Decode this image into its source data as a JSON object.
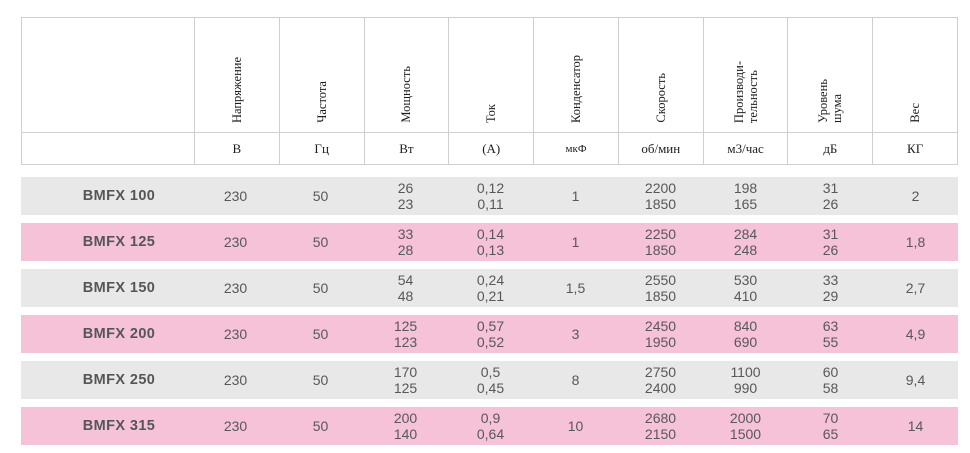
{
  "table": {
    "columns": [
      {
        "label": "Напряжение",
        "unit": "В"
      },
      {
        "label": "Частота",
        "unit": "Гц"
      },
      {
        "label": "Мощность",
        "unit": "Вт"
      },
      {
        "label": "Ток",
        "unit": "(А)"
      },
      {
        "label": "Конденсатор",
        "unit": "мкФ"
      },
      {
        "label": "Скорость",
        "unit": "об/мин"
      },
      {
        "label": "Производи-\nтельность",
        "unit": "м3/час"
      },
      {
        "label": "Уровень\nшума",
        "unit": "дБ"
      },
      {
        "label": "Вес",
        "unit": "КГ"
      }
    ],
    "rows": [
      {
        "model": "BMFX 100",
        "values": [
          "230",
          "50",
          "26\n23",
          "0,12\n0,11",
          "1",
          "2200\n1850",
          "198\n165",
          "31\n26",
          "2"
        ]
      },
      {
        "model": "BMFX 125",
        "values": [
          "230",
          "50",
          "33\n28",
          "0,14\n0,13",
          "1",
          "2250\n1850",
          "284\n248",
          "31\n26",
          "1,8"
        ]
      },
      {
        "model": "BMFX 150",
        "values": [
          "230",
          "50",
          "54\n48",
          "0,24\n0,21",
          "1,5",
          "2550\n1850",
          "530\n410",
          "33\n29",
          "2,7"
        ]
      },
      {
        "model": "BMFX 200",
        "values": [
          "230",
          "50",
          "125\n123",
          "0,57\n0,52",
          "3",
          "2450\n1950",
          "840\n690",
          "63\n55",
          "4,9"
        ]
      },
      {
        "model": "BMFX 250",
        "values": [
          "230",
          "50",
          "170\n125",
          "0,5\n0,45",
          "8",
          "2750\n2400",
          "1100\n990",
          "60\n58",
          "9,4"
        ]
      },
      {
        "model": "BMFX 315",
        "values": [
          "230",
          "50",
          "200\n140",
          "0,9\n0,64",
          "10",
          "2680\n2150",
          "2000\n1500",
          "70\n65",
          "14"
        ]
      }
    ],
    "colors": {
      "band_gray": "#e8e8e8",
      "band_pink": "#f5c2d7",
      "border": "#cfcfcf",
      "text": "#58585a"
    }
  }
}
